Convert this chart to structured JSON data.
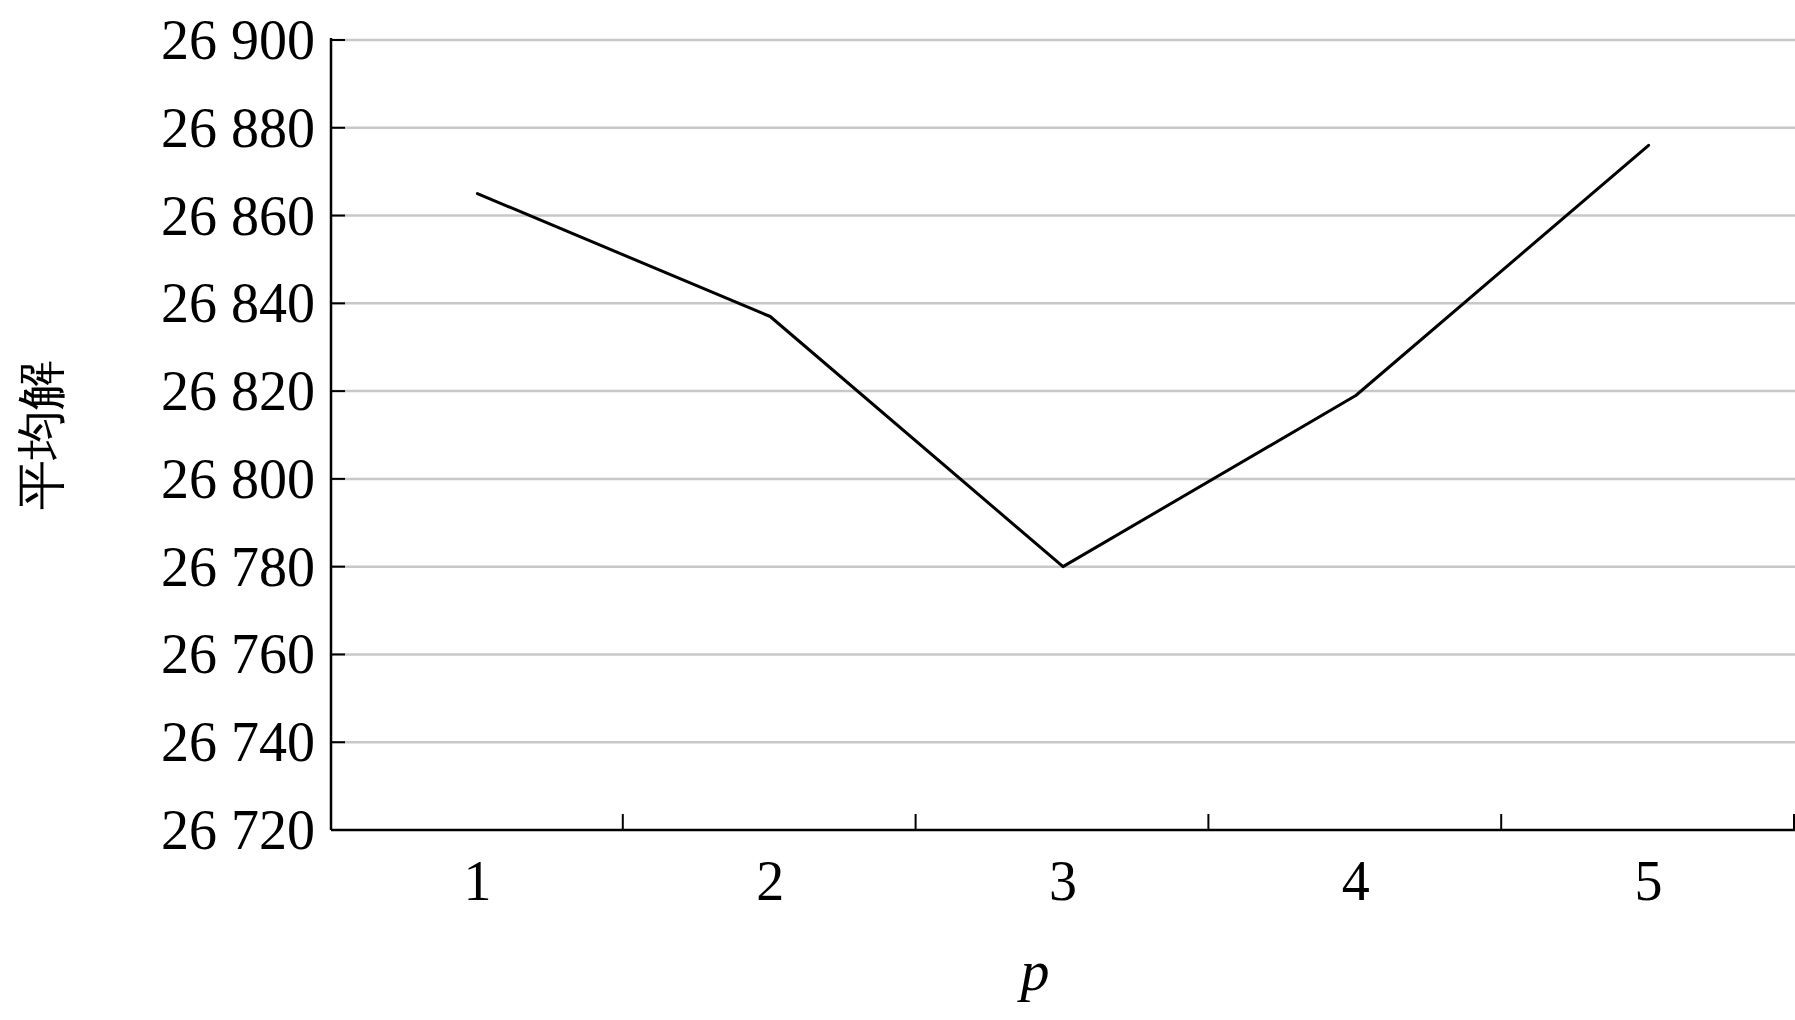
{
  "chart_data": {
    "type": "line",
    "xlabel": "p",
    "ylabel": "平均解",
    "categories": [
      "1",
      "2",
      "3",
      "4",
      "5"
    ],
    "series": [
      {
        "color": "#000000",
        "values": [
          26865,
          26837,
          26780,
          26819,
          26876
        ]
      }
    ],
    "ylim": [
      26720,
      26900
    ],
    "yticks": [
      {
        "value": 26720,
        "label": "26 720"
      },
      {
        "value": 26740,
        "label": "26 740"
      },
      {
        "value": 26760,
        "label": "26 760"
      },
      {
        "value": 26780,
        "label": "26 780"
      },
      {
        "value": 26800,
        "label": "26 800"
      },
      {
        "value": 26820,
        "label": "26 820"
      },
      {
        "value": 26840,
        "label": "26 840"
      },
      {
        "value": 26860,
        "label": "26 860"
      },
      {
        "value": 26880,
        "label": "26 880"
      },
      {
        "value": 26900,
        "label": "26 900"
      }
    ],
    "grid": "y"
  }
}
